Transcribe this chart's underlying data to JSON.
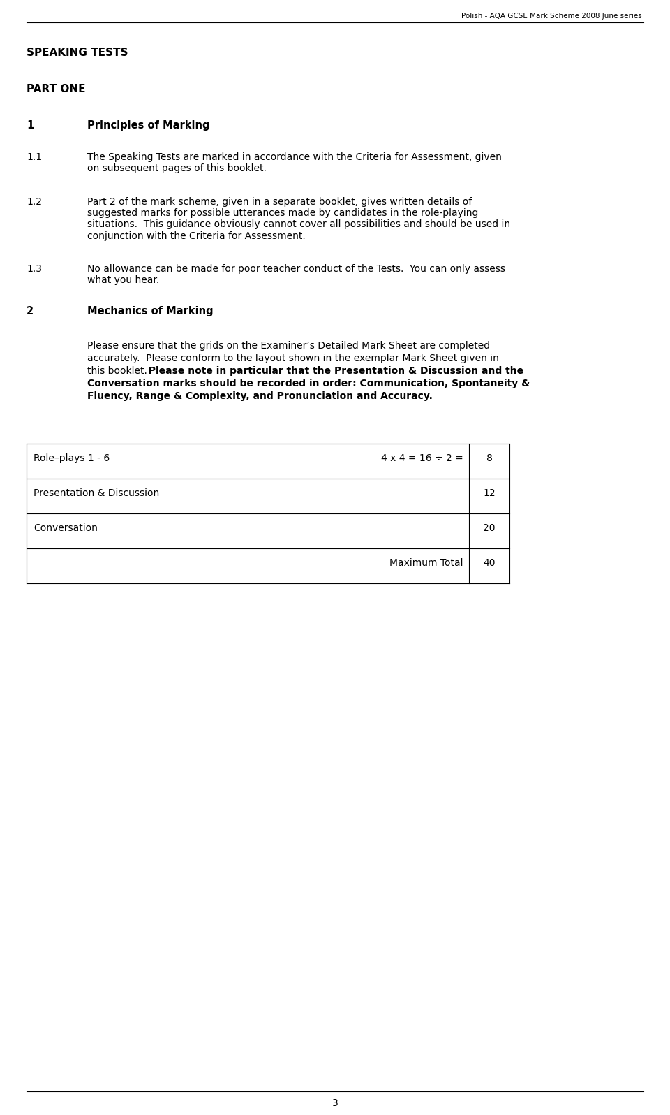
{
  "header_text": "Polish - AQA GCSE Mark Scheme 2008 June series",
  "section_title": "SPEAKING TESTS",
  "part_title": "PART ONE",
  "page_number": "3",
  "bg_color": "#ffffff",
  "text_color": "#000000",
  "line_color": "#000000",
  "table_rows": [
    [
      "Role–plays 1 - 6",
      "4 x 4 = 16 ÷ 2 =",
      "8"
    ],
    [
      "Presentation & Discussion",
      "",
      "12"
    ],
    [
      "Conversation",
      "",
      "20"
    ],
    [
      "",
      "Maximum Total",
      "40"
    ]
  ]
}
